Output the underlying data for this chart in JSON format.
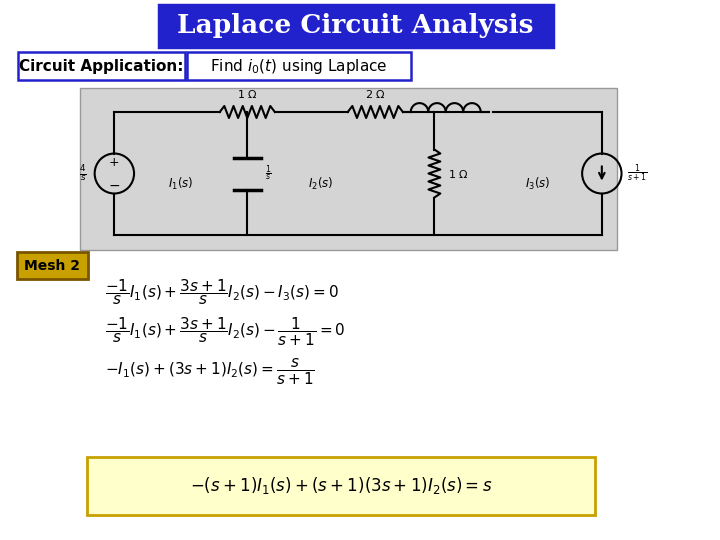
{
  "title": "Laplace Circuit Analysis",
  "title_bg": "#2222cc",
  "title_color": "white",
  "subtitle_left": "Circuit Application:",
  "subtitle_border": "#2222cc",
  "mesh_label": "Mesh 2",
  "mesh_label_bg": "#c8a000",
  "mesh_label_border": "#7a5500",
  "final_box_bg": "#ffffcc",
  "final_box_border": "#c8a000",
  "bg_color": "white",
  "circuit_bg": "#d4d4d4"
}
